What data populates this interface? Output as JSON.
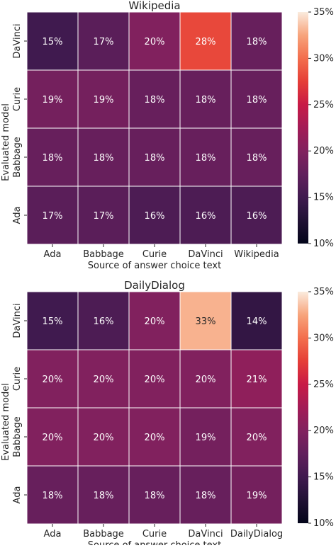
{
  "chart_data": [
    {
      "type": "heatmap",
      "title": "Wikipedia",
      "xlabel": "Source of answer choice text",
      "ylabel": "Evaluated model",
      "x_categories": [
        "Ada",
        "Babbage",
        "Curie",
        "DaVinci",
        "Wikipedia"
      ],
      "y_categories": [
        "DaVinci",
        "Curie",
        "Babbage",
        "Ada"
      ],
      "values": [
        [
          15,
          17,
          20,
          28,
          18
        ],
        [
          19,
          19,
          18,
          18,
          18
        ],
        [
          18,
          18,
          18,
          18,
          18
        ],
        [
          17,
          17,
          16,
          16,
          16
        ]
      ],
      "value_labels": [
        [
          "15%",
          "17%",
          "20%",
          "28%",
          "18%"
        ],
        [
          "19%",
          "19%",
          "18%",
          "18%",
          "18%"
        ],
        [
          "18%",
          "18%",
          "18%",
          "18%",
          "18%"
        ],
        [
          "17%",
          "17%",
          "16%",
          "16%",
          "16%"
        ]
      ],
      "color_range": [
        10,
        35
      ],
      "colorbar_ticks": [
        10,
        15,
        20,
        25,
        30,
        35
      ],
      "colorbar_tick_labels": [
        "10%",
        "15%",
        "20%",
        "25%",
        "30%",
        "35%"
      ],
      "grid": true
    },
    {
      "type": "heatmap",
      "title": "DailyDialog",
      "xlabel": "Source of answer choice text",
      "ylabel": "Evaluated model",
      "x_categories": [
        "Ada",
        "Babbage",
        "Curie",
        "DaVinci",
        "DailyDialog"
      ],
      "y_categories": [
        "DaVinci",
        "Curie",
        "Babbage",
        "Ada"
      ],
      "values": [
        [
          15,
          16,
          20,
          33,
          14
        ],
        [
          20,
          20,
          20,
          20,
          21
        ],
        [
          20,
          20,
          20,
          19,
          20
        ],
        [
          18,
          18,
          18,
          18,
          19
        ]
      ],
      "value_labels": [
        [
          "15%",
          "16%",
          "20%",
          "33%",
          "14%"
        ],
        [
          "20%",
          "20%",
          "20%",
          "20%",
          "21%"
        ],
        [
          "20%",
          "20%",
          "20%",
          "19%",
          "20%"
        ],
        [
          "18%",
          "18%",
          "18%",
          "18%",
          "19%"
        ]
      ],
      "color_range": [
        10,
        35
      ],
      "colorbar_ticks": [
        10,
        15,
        20,
        25,
        30,
        35
      ],
      "colorbar_tick_labels": [
        "10%",
        "15%",
        "20%",
        "25%",
        "30%",
        "35%"
      ],
      "grid": true
    }
  ],
  "colormap": "rocket",
  "colors": {
    "cell_border": "#ffffff",
    "text_on_dark": "#ffffff",
    "text_on_light": "#262626",
    "axis_text": "#262626"
  }
}
